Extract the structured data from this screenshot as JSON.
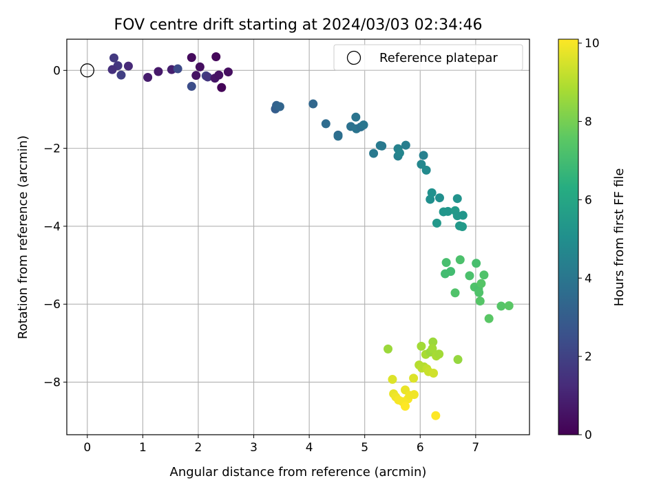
{
  "chart_data": {
    "type": "scatter",
    "title": "FOV centre drift starting at 2024/03/03 02:34:46",
    "xlabel": "Angular distance from reference (arcmin)",
    "ylabel": "Rotation from reference (arcmin)",
    "xlim": [
      -0.37,
      7.97
    ],
    "ylim": [
      -9.35,
      0.8
    ],
    "xticks": [
      0,
      1,
      2,
      3,
      4,
      5,
      6,
      7
    ],
    "yticks": [
      0,
      -2,
      -4,
      -6,
      -8
    ],
    "grid": true,
    "legend": {
      "entries": [
        "Reference platepar"
      ],
      "placement": "top-right"
    },
    "colorbar": {
      "label": "Hours from first FF file",
      "range": [
        0,
        10.1
      ],
      "ticks": [
        0,
        2,
        4,
        6,
        8,
        10
      ],
      "colormap": "viridis"
    },
    "reference_point": {
      "x": 0,
      "y": 0,
      "name": "Reference platepar"
    },
    "points": [
      {
        "x": 0.48,
        "y": 0.32,
        "c": 1.7
      },
      {
        "x": 0.55,
        "y": 0.12,
        "c": 1.6
      },
      {
        "x": 0.45,
        "y": 0.02,
        "c": 1.4
      },
      {
        "x": 0.61,
        "y": -0.12,
        "c": 1.9
      },
      {
        "x": 0.74,
        "y": 0.11,
        "c": 1.2
      },
      {
        "x": 1.09,
        "y": -0.18,
        "c": 0.8
      },
      {
        "x": 1.28,
        "y": -0.03,
        "c": 0.7
      },
      {
        "x": 1.52,
        "y": 0.02,
        "c": 0.9
      },
      {
        "x": 1.63,
        "y": 0.04,
        "c": 2.3
      },
      {
        "x": 1.88,
        "y": 0.33,
        "c": 0.3
      },
      {
        "x": 1.88,
        "y": -0.41,
        "c": 2.4
      },
      {
        "x": 1.96,
        "y": -0.13,
        "c": 0.5
      },
      {
        "x": 2.03,
        "y": 0.09,
        "c": 0.4
      },
      {
        "x": 2.14,
        "y": -0.14,
        "c": 2.0
      },
      {
        "x": 2.17,
        "y": -0.17,
        "c": 1.6
      },
      {
        "x": 2.32,
        "y": 0.35,
        "c": 0.2
      },
      {
        "x": 2.3,
        "y": -0.2,
        "c": 0.6
      },
      {
        "x": 2.37,
        "y": -0.12,
        "c": 0.5
      },
      {
        "x": 2.42,
        "y": -0.44,
        "c": 0.1
      },
      {
        "x": 2.54,
        "y": -0.04,
        "c": 0.4
      },
      {
        "x": 3.39,
        "y": -0.99,
        "c": 3.0
      },
      {
        "x": 3.41,
        "y": -0.9,
        "c": 3.2
      },
      {
        "x": 3.47,
        "y": -0.93,
        "c": 3.3
      },
      {
        "x": 4.07,
        "y": -0.86,
        "c": 3.4
      },
      {
        "x": 4.3,
        "y": -1.37,
        "c": 3.6
      },
      {
        "x": 4.52,
        "y": -1.66,
        "c": 3.5
      },
      {
        "x": 4.52,
        "y": -1.69,
        "c": 3.7
      },
      {
        "x": 4.75,
        "y": -1.44,
        "c": 3.8
      },
      {
        "x": 4.84,
        "y": -1.2,
        "c": 3.9
      },
      {
        "x": 4.85,
        "y": -1.5,
        "c": 3.9
      },
      {
        "x": 4.93,
        "y": -1.45,
        "c": 3.7
      },
      {
        "x": 4.98,
        "y": -1.4,
        "c": 4.0
      },
      {
        "x": 5.16,
        "y": -2.13,
        "c": 4.1
      },
      {
        "x": 5.28,
        "y": -1.93,
        "c": 4.2
      },
      {
        "x": 5.31,
        "y": -1.94,
        "c": 4.1
      },
      {
        "x": 5.6,
        "y": -2.01,
        "c": 4.5
      },
      {
        "x": 5.6,
        "y": -2.2,
        "c": 4.4
      },
      {
        "x": 5.63,
        "y": -2.12,
        "c": 4.6
      },
      {
        "x": 5.74,
        "y": -1.92,
        "c": 4.3
      },
      {
        "x": 6.02,
        "y": -2.41,
        "c": 4.7
      },
      {
        "x": 6.06,
        "y": -2.18,
        "c": 4.4
      },
      {
        "x": 6.11,
        "y": -2.56,
        "c": 4.8
      },
      {
        "x": 6.18,
        "y": -3.31,
        "c": 5.0
      },
      {
        "x": 6.21,
        "y": -3.14,
        "c": 5.1
      },
      {
        "x": 6.35,
        "y": -3.27,
        "c": 5.0
      },
      {
        "x": 6.3,
        "y": -3.92,
        "c": 5.4
      },
      {
        "x": 6.42,
        "y": -3.63,
        "c": 5.3
      },
      {
        "x": 6.5,
        "y": -3.62,
        "c": 5.3
      },
      {
        "x": 6.63,
        "y": -3.6,
        "c": 5.5
      },
      {
        "x": 6.67,
        "y": -3.29,
        "c": 5.2
      },
      {
        "x": 6.67,
        "y": -3.73,
        "c": 5.4
      },
      {
        "x": 6.77,
        "y": -3.72,
        "c": 5.3
      },
      {
        "x": 6.71,
        "y": -3.99,
        "c": 5.4
      },
      {
        "x": 6.76,
        "y": -4.01,
        "c": 5.5
      },
      {
        "x": 6.47,
        "y": -4.93,
        "c": 7.1
      },
      {
        "x": 6.45,
        "y": -5.22,
        "c": 7.0
      },
      {
        "x": 6.55,
        "y": -5.16,
        "c": 7.0
      },
      {
        "x": 6.72,
        "y": -4.86,
        "c": 7.2
      },
      {
        "x": 6.63,
        "y": -5.71,
        "c": 7.3
      },
      {
        "x": 6.89,
        "y": -5.27,
        "c": 7.2
      },
      {
        "x": 7.01,
        "y": -4.95,
        "c": 7.1
      },
      {
        "x": 6.98,
        "y": -5.56,
        "c": 7.3
      },
      {
        "x": 7.05,
        "y": -5.61,
        "c": 7.2
      },
      {
        "x": 7.1,
        "y": -5.47,
        "c": 7.4
      },
      {
        "x": 7.06,
        "y": -5.7,
        "c": 7.3
      },
      {
        "x": 7.08,
        "y": -5.92,
        "c": 7.4
      },
      {
        "x": 7.15,
        "y": -5.25,
        "c": 7.3
      },
      {
        "x": 7.24,
        "y": -6.37,
        "c": 7.5
      },
      {
        "x": 7.46,
        "y": -6.05,
        "c": 7.4
      },
      {
        "x": 7.6,
        "y": -6.04,
        "c": 7.5
      },
      {
        "x": 5.42,
        "y": -7.15,
        "c": 8.6
      },
      {
        "x": 6.02,
        "y": -7.08,
        "c": 8.7
      },
      {
        "x": 6.23,
        "y": -6.97,
        "c": 8.6
      },
      {
        "x": 6.1,
        "y": -7.29,
        "c": 8.8
      },
      {
        "x": 6.18,
        "y": -7.23,
        "c": 8.6
      },
      {
        "x": 6.22,
        "y": -7.14,
        "c": 8.7
      },
      {
        "x": 6.29,
        "y": -7.33,
        "c": 8.8
      },
      {
        "x": 6.34,
        "y": -7.28,
        "c": 8.7
      },
      {
        "x": 6.68,
        "y": -7.42,
        "c": 8.5
      },
      {
        "x": 5.98,
        "y": -7.56,
        "c": 9.0
      },
      {
        "x": 6.03,
        "y": -7.64,
        "c": 9.1
      },
      {
        "x": 6.07,
        "y": -7.61,
        "c": 9.0
      },
      {
        "x": 6.12,
        "y": -7.66,
        "c": 9.2
      },
      {
        "x": 6.15,
        "y": -7.73,
        "c": 9.3
      },
      {
        "x": 6.24,
        "y": -7.77,
        "c": 9.4
      },
      {
        "x": 5.5,
        "y": -7.93,
        "c": 9.6
      },
      {
        "x": 5.88,
        "y": -7.9,
        "c": 9.6
      },
      {
        "x": 5.52,
        "y": -8.3,
        "c": 9.8
      },
      {
        "x": 5.56,
        "y": -8.38,
        "c": 9.9
      },
      {
        "x": 5.61,
        "y": -8.46,
        "c": 10.0
      },
      {
        "x": 5.68,
        "y": -8.5,
        "c": 10.0
      },
      {
        "x": 5.73,
        "y": -8.2,
        "c": 9.8
      },
      {
        "x": 5.78,
        "y": -8.43,
        "c": 10.0
      },
      {
        "x": 5.81,
        "y": -8.34,
        "c": 9.9
      },
      {
        "x": 5.89,
        "y": -8.32,
        "c": 9.9
      },
      {
        "x": 5.73,
        "y": -8.62,
        "c": 10.1
      },
      {
        "x": 6.28,
        "y": -8.86,
        "c": 10.1
      }
    ]
  }
}
